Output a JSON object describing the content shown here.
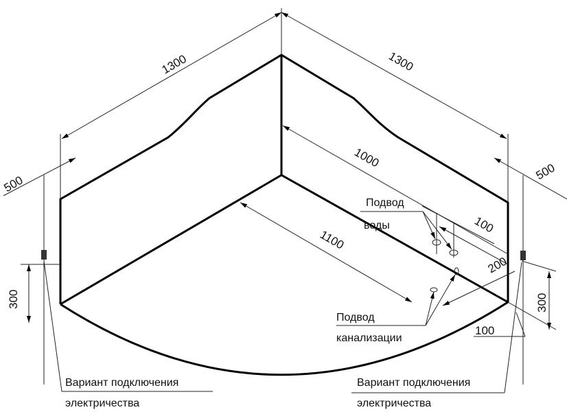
{
  "dimensions": {
    "left_width": "1300",
    "right_width": "1300",
    "left_offset": "500",
    "right_offset": "500",
    "inner_depth": "1000",
    "diagonal": "1100",
    "water_spacing": "100",
    "drain_offset": "200",
    "drain_bottom": "100",
    "left_height": "300",
    "right_height": "300"
  },
  "labels": {
    "water_line1": "Подвод",
    "water_line2": "воды",
    "drain_line1": "Подвод",
    "drain_line2": "канализации",
    "elec_left_line1": "Вариант подключения",
    "elec_left_line2": "электричества",
    "elec_right_line1": "Вариант подключения",
    "elec_right_line2": "электричества"
  }
}
